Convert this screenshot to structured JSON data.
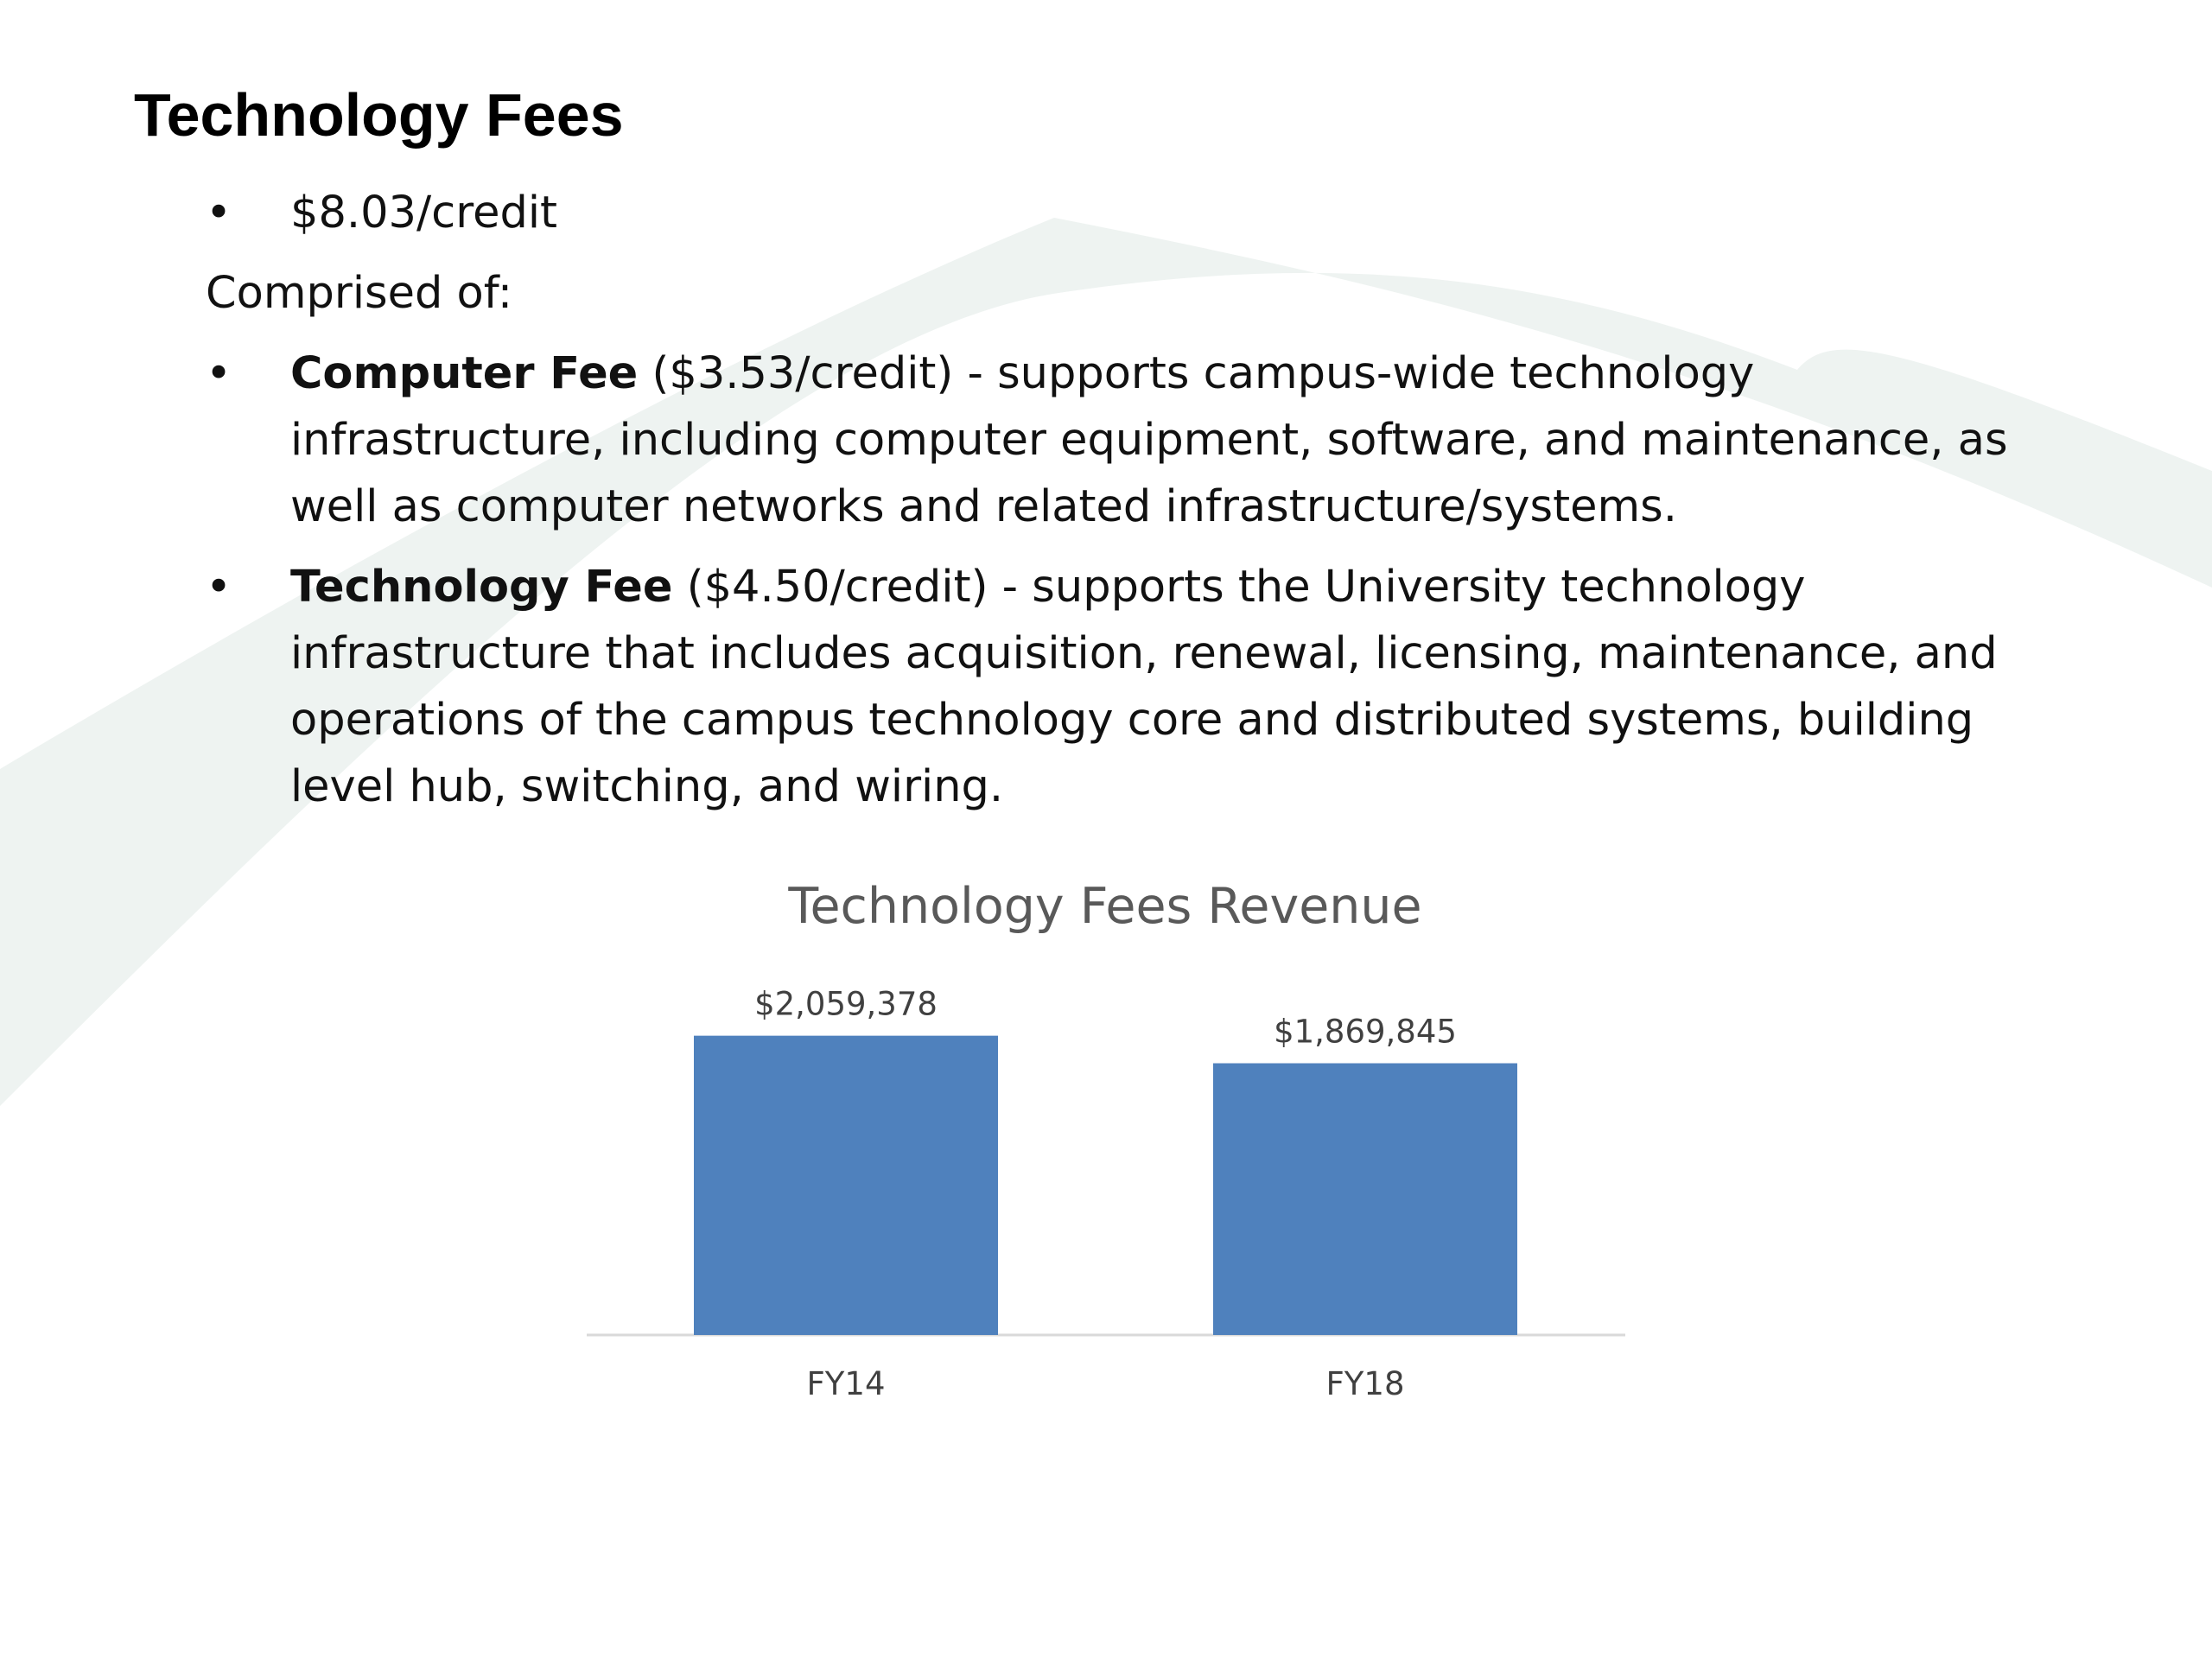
{
  "slide": {
    "title": "Technology Fees",
    "rate_bullet": "$8.03/credit",
    "comprised_label": "Comprised of:",
    "fees": [
      {
        "name": "Computer Fee",
        "description": "($3.53/credit) - supports campus-wide technology infrastructure, including computer equipment, software, and maintenance, as well as computer networks and related infrastructure/systems."
      },
      {
        "name": "Technology Fee",
        "description": "($4.50/credit) - supports the University technology infrastructure that includes acquisition, renewal, licensing, maintenance, and operations of the campus technology core and distributed systems, building level hub, switching, and wiring."
      }
    ],
    "bullet_glyph": "•"
  },
  "colors": {
    "bar": "#4f81bd",
    "swoosh": "#eef3f1",
    "axis": "#d9d9d9",
    "label": "#404040",
    "title": "#595959"
  },
  "chart_data": {
    "type": "bar",
    "title": "Technology Fees Revenue",
    "categories": [
      "FY14",
      "FY18"
    ],
    "values": [
      2059378,
      1869845
    ],
    "data_labels": [
      "$2,059,378",
      "$1,869,845"
    ],
    "ylim": [
      0,
      2200000
    ],
    "grid": false,
    "legend": "none"
  }
}
